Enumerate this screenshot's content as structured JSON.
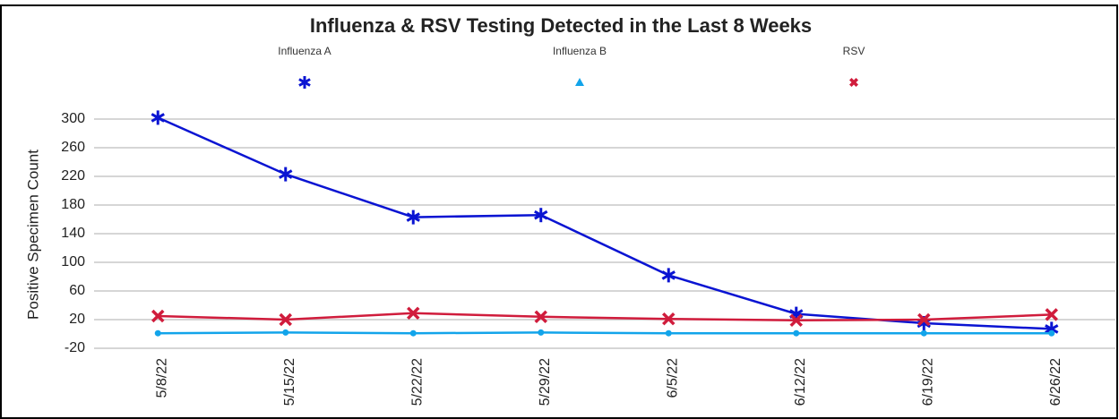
{
  "chart_data": {
    "type": "line",
    "title": "Influenza & RSV Testing Detected in the Last 8 Weeks",
    "y_label": "Positive Specimen Count",
    "categories": [
      "5/8/22",
      "5/15/22",
      "5/22/22",
      "5/29/22",
      "6/5/22",
      "6/12/22",
      "6/19/22",
      "6/26/22"
    ],
    "series": [
      {
        "name": "Influenza A",
        "color": "#0a14d2",
        "marker": "asterisk",
        "values": [
          302,
          223,
          163,
          166,
          82,
          28,
          15,
          7
        ]
      },
      {
        "name": "Influenza B",
        "color": "#12a4ea",
        "marker": "triangle",
        "values": [
          1,
          2,
          1,
          2,
          1,
          1,
          1,
          1
        ]
      },
      {
        "name": "RSV",
        "color": "#d01c3c",
        "marker": "x",
        "values": [
          25,
          20,
          29,
          24,
          21,
          19,
          20,
          27
        ]
      }
    ],
    "ylim": [
      -20,
      300
    ],
    "yticks": [
      300,
      260,
      220,
      180,
      140,
      100,
      60,
      20,
      -20
    ],
    "grid": true,
    "legend": "top"
  }
}
